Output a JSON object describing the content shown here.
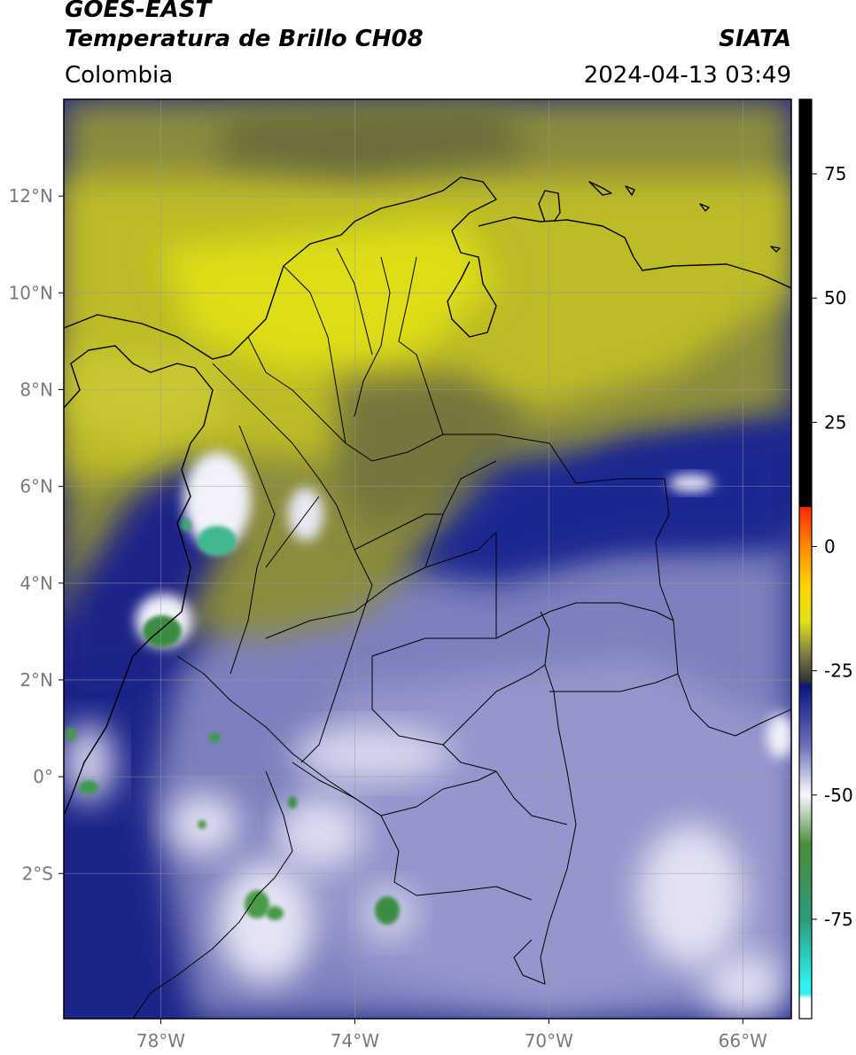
{
  "header": {
    "satellite": "GOES-EAST",
    "product": "Temperatura de Brillo CH08",
    "organization": "SIATA",
    "region": "Colombia",
    "datetime": "2024-04-13 03:49"
  },
  "map": {
    "lon_range": [
      -80,
      -65
    ],
    "lat_range": [
      -5,
      14
    ],
    "lat_ticks": [
      {
        "value": 12,
        "label": "12°N"
      },
      {
        "value": 10,
        "label": "10°N"
      },
      {
        "value": 8,
        "label": "8°N"
      },
      {
        "value": 6,
        "label": "6°N"
      },
      {
        "value": 4,
        "label": "4°N"
      },
      {
        "value": 2,
        "label": "2°N"
      },
      {
        "value": 0,
        "label": "0°"
      },
      {
        "value": -2,
        "label": "2°S"
      }
    ],
    "lon_ticks": [
      {
        "value": -78,
        "label": "78°W"
      },
      {
        "value": -74,
        "label": "74°W"
      },
      {
        "value": -70,
        "label": "70°W"
      },
      {
        "value": -66,
        "label": "66°W"
      }
    ],
    "colors": {
      "warm_yellow": "#c8c82a",
      "mid_olive": "#8c8c3c",
      "cold_navy": "#1c2488",
      "very_cold_lavender": "#8c8cc4",
      "cloud_white": "#f0f0f8",
      "deep_green": "#3c8c4a",
      "teal": "#40c8a8"
    }
  },
  "colorbar": {
    "range": [
      -95,
      90
    ],
    "ticks": [
      {
        "value": 75,
        "label": "75"
      },
      {
        "value": 50,
        "label": "50"
      },
      {
        "value": 25,
        "label": "25"
      },
      {
        "value": 0,
        "label": "0"
      },
      {
        "value": -25,
        "label": "-25"
      },
      {
        "value": -50,
        "label": "-50"
      },
      {
        "value": -75,
        "label": "-75"
      }
    ],
    "stops": [
      {
        "value": 90,
        "color": "#000000"
      },
      {
        "value": 8,
        "color": "#000000"
      },
      {
        "value": 7.9,
        "color": "#ff2a00"
      },
      {
        "value": 0,
        "color": "#ff8a00"
      },
      {
        "value": -8,
        "color": "#ffd400"
      },
      {
        "value": -15,
        "color": "#e2e21a"
      },
      {
        "value": -22,
        "color": "#777744"
      },
      {
        "value": -27,
        "color": "#333333"
      },
      {
        "value": -28,
        "color": "#0a1480"
      },
      {
        "value": -40,
        "color": "#6c70b8"
      },
      {
        "value": -50,
        "color": "#f8f8ff"
      },
      {
        "value": -60,
        "color": "#4a8c3a"
      },
      {
        "value": -75,
        "color": "#2a9c7a"
      },
      {
        "value": -88,
        "color": "#30f0f0"
      },
      {
        "value": -90,
        "color": "#30f0f0"
      },
      {
        "value": -91,
        "color": "#ffffff"
      },
      {
        "value": -95,
        "color": "#ffffff"
      }
    ]
  }
}
